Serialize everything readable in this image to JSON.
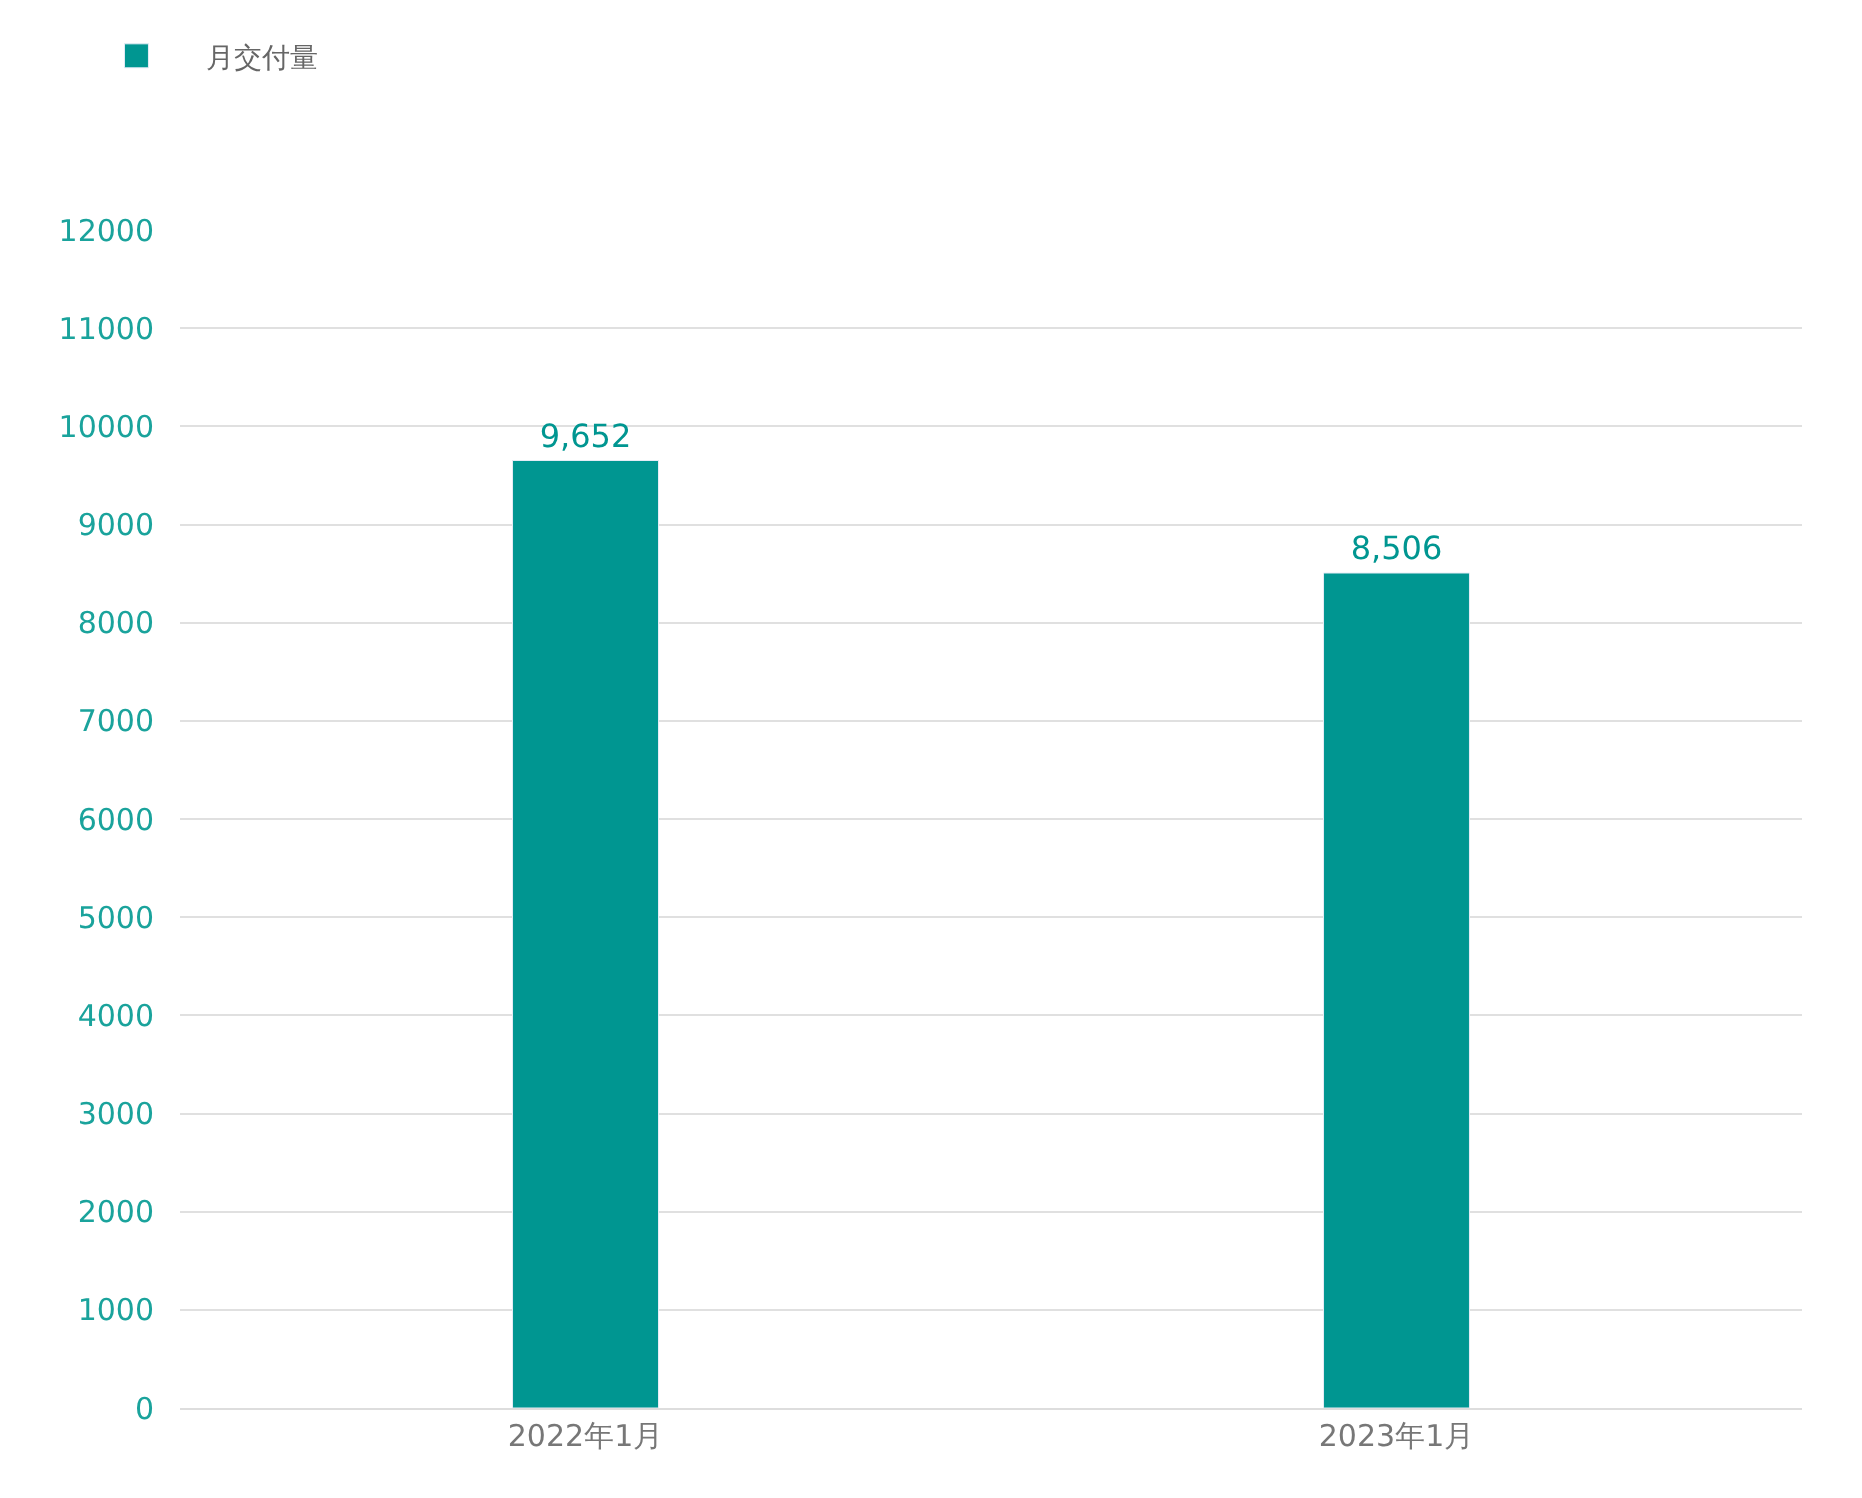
{
  "chart_data": {
    "type": "bar",
    "categories": [
      "2022年1月",
      "2023年1月"
    ],
    "series": [
      {
        "name": "月交付量",
        "color": "#009691",
        "values": [
          9652,
          8506
        ],
        "value_labels": [
          "9,652",
          "8,506"
        ]
      }
    ],
    "ylim": [
      0,
      12000
    ],
    "yticks": [
      0,
      1000,
      2000,
      3000,
      4000,
      5000,
      6000,
      7000,
      8000,
      9000,
      10000,
      11000,
      12000
    ],
    "grid": "y",
    "legend": "top left"
  }
}
